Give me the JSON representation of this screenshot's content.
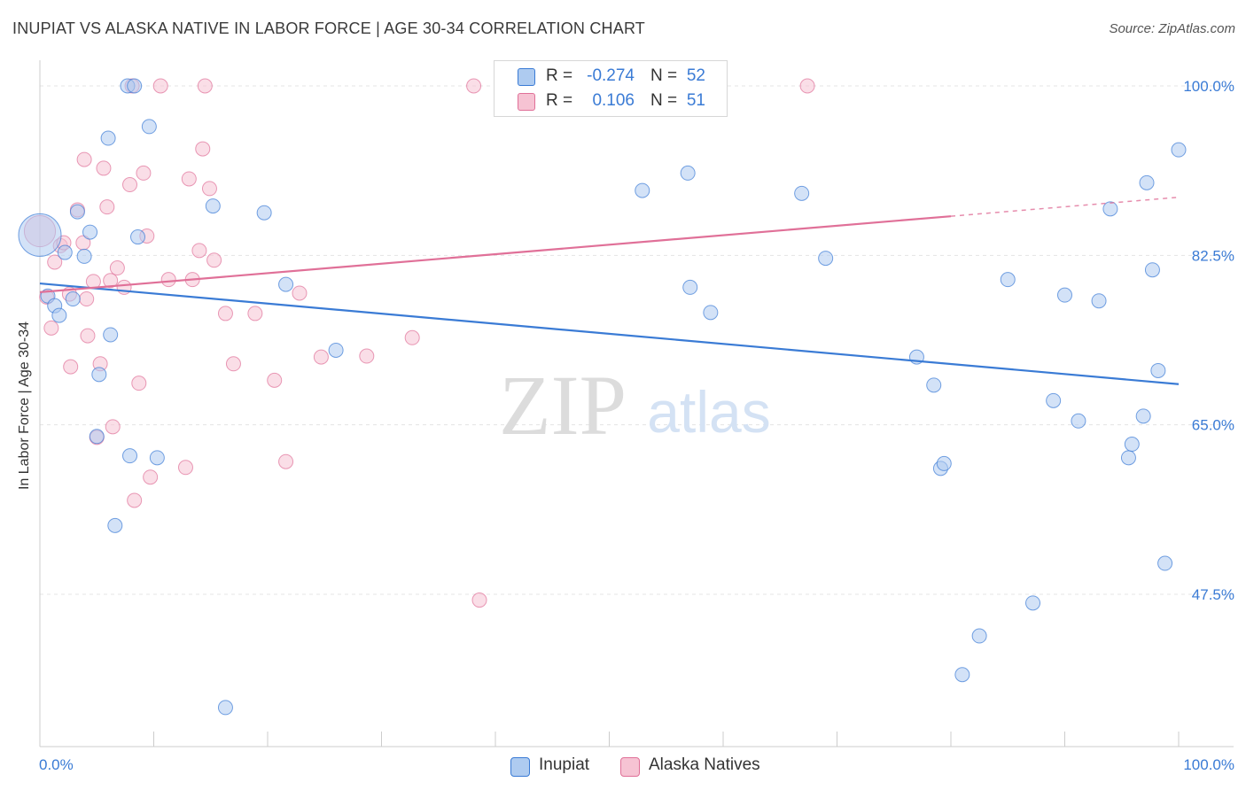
{
  "title": "INUPIAT VS ALASKA NATIVE IN LABOR FORCE | AGE 30-34 CORRELATION CHART",
  "source": "Source: ZipAtlas.com",
  "watermark": {
    "zip": "ZIP",
    "atlas": "atlas"
  },
  "colors": {
    "blue": "#3a7bd5",
    "pink": "#e07098",
    "blueFill": "#aecbf0",
    "pinkFill": "#f6c3d3",
    "grid": "#e4e4e4"
  },
  "legend_top": {
    "series": [
      {
        "r_label": "R =",
        "r_value": "-0.274",
        "n_label": "N =",
        "n_value": "52"
      },
      {
        "r_label": "R =",
        "r_value": "0.106",
        "n_label": "N =",
        "n_value": "51"
      }
    ]
  },
  "legend_bottom": [
    "Inupiat",
    "Alaska Natives"
  ],
  "chart_data": {
    "type": "scatter",
    "title": "INUPIAT VS ALASKA NATIVE IN LABOR FORCE | AGE 30-34 CORRELATION CHART",
    "xlabel": "",
    "ylabel": "In Labor Force | Age 30-34",
    "xlim": [
      0,
      100
    ],
    "ylim": [
      34,
      102
    ],
    "x_tick_labels": [
      "0.0%",
      "100.0%"
    ],
    "y_ticks": [
      100.0,
      82.5,
      65.0,
      47.5
    ],
    "y_tick_labels": [
      "100.0%",
      "82.5%",
      "65.0%",
      "47.5%"
    ],
    "series": [
      {
        "name": "Inupiat",
        "R": -0.274,
        "N": 52,
        "trend": {
          "x0": 0,
          "y0": 79.6,
          "x1": 100,
          "y1": 69.2,
          "solid_until": 100
        },
        "points": [
          [
            0.0,
            84.6,
            3.0
          ],
          [
            0.7,
            78.3,
            1
          ],
          [
            1.3,
            77.3,
            1
          ],
          [
            1.7,
            76.3,
            1
          ],
          [
            2.2,
            82.8,
            1
          ],
          [
            2.9,
            78.0,
            1
          ],
          [
            3.3,
            87.0,
            1
          ],
          [
            3.9,
            82.4,
            1
          ],
          [
            4.4,
            84.9,
            1
          ],
          [
            5.0,
            63.8,
            1
          ],
          [
            5.2,
            70.2,
            1
          ],
          [
            6.0,
            94.6,
            1
          ],
          [
            6.2,
            74.3,
            1
          ],
          [
            6.6,
            54.6,
            1
          ],
          [
            7.7,
            100.0,
            1
          ],
          [
            7.9,
            61.8,
            1
          ],
          [
            8.3,
            100.0,
            1
          ],
          [
            8.6,
            84.4,
            1
          ],
          [
            9.6,
            95.8,
            1
          ],
          [
            10.3,
            61.6,
            1
          ],
          [
            15.2,
            87.6,
            1
          ],
          [
            16.3,
            35.8,
            1
          ],
          [
            19.7,
            86.9,
            1
          ],
          [
            21.6,
            79.5,
            1
          ],
          [
            26.0,
            72.7,
            1
          ],
          [
            52.9,
            89.2,
            1
          ],
          [
            56.9,
            91.0,
            1
          ],
          [
            57.1,
            79.2,
            1
          ],
          [
            58.9,
            76.6,
            1
          ],
          [
            66.9,
            88.9,
            1
          ],
          [
            69.0,
            82.2,
            1
          ],
          [
            77.0,
            72.0,
            1
          ],
          [
            78.5,
            69.1,
            1
          ],
          [
            79.1,
            60.5,
            1
          ],
          [
            79.4,
            61.0,
            1
          ],
          [
            81.0,
            39.2,
            1
          ],
          [
            82.5,
            43.2,
            1
          ],
          [
            85.0,
            80.0,
            1
          ],
          [
            87.2,
            46.6,
            1
          ],
          [
            89.0,
            67.5,
            1
          ],
          [
            90.0,
            78.4,
            1
          ],
          [
            91.2,
            65.4,
            1
          ],
          [
            93.0,
            77.8,
            1
          ],
          [
            94.0,
            87.3,
            1
          ],
          [
            95.6,
            61.6,
            1
          ],
          [
            95.9,
            63.0,
            1
          ],
          [
            96.9,
            65.9,
            1
          ],
          [
            97.2,
            90.0,
            1
          ],
          [
            97.7,
            81.0,
            1
          ],
          [
            98.2,
            70.6,
            1
          ],
          [
            98.8,
            50.7,
            1
          ],
          [
            100.0,
            93.4,
            1
          ]
        ]
      },
      {
        "name": "Alaska Natives",
        "R": 0.106,
        "N": 51,
        "trend": {
          "x0": 0,
          "y0": 78.7,
          "x1": 100,
          "y1": 88.5,
          "solid_until": 80
        },
        "points": [
          [
            0.0,
            85.0,
            2.2
          ],
          [
            0.6,
            78.2,
            1
          ],
          [
            1.0,
            75.0,
            1
          ],
          [
            1.3,
            81.8,
            1
          ],
          [
            1.8,
            83.5,
            1
          ],
          [
            2.6,
            78.5,
            1
          ],
          [
            2.7,
            71.0,
            1
          ],
          [
            3.3,
            87.2,
            1
          ],
          [
            3.8,
            83.8,
            1
          ],
          [
            3.9,
            92.4,
            1
          ],
          [
            4.2,
            74.2,
            1
          ],
          [
            4.7,
            79.8,
            1
          ],
          [
            5.0,
            63.7,
            1
          ],
          [
            5.3,
            71.3,
            1
          ],
          [
            5.6,
            91.5,
            1
          ],
          [
            5.9,
            87.5,
            1
          ],
          [
            6.4,
            64.8,
            1
          ],
          [
            6.8,
            81.2,
            1
          ],
          [
            7.4,
            79.2,
            1
          ],
          [
            7.9,
            89.8,
            1
          ],
          [
            8.3,
            57.2,
            1
          ],
          [
            8.7,
            69.3,
            1
          ],
          [
            9.1,
            91.0,
            1
          ],
          [
            9.4,
            84.5,
            1
          ],
          [
            9.7,
            59.6,
            1
          ],
          [
            11.3,
            80.0,
            1
          ],
          [
            12.8,
            60.6,
            1
          ],
          [
            13.1,
            90.4,
            1
          ],
          [
            13.4,
            80.0,
            1
          ],
          [
            14.0,
            83.0,
            1
          ],
          [
            14.3,
            93.5,
            1
          ],
          [
            14.5,
            100.0,
            1
          ],
          [
            14.9,
            89.4,
            1
          ],
          [
            15.3,
            82.0,
            1
          ],
          [
            16.3,
            76.5,
            1
          ],
          [
            17.0,
            71.3,
            1
          ],
          [
            18.9,
            76.5,
            1
          ],
          [
            20.6,
            69.6,
            1
          ],
          [
            21.6,
            61.2,
            1
          ],
          [
            22.8,
            78.6,
            1
          ],
          [
            24.7,
            72.0,
            1
          ],
          [
            28.7,
            72.1,
            1
          ],
          [
            32.7,
            74.0,
            1
          ],
          [
            38.1,
            100.0,
            1
          ],
          [
            38.6,
            46.9,
            1
          ],
          [
            67.4,
            100.0,
            1
          ],
          [
            10.6,
            100.0,
            1
          ],
          [
            8.1,
            100.0,
            1
          ],
          [
            4.1,
            78.0,
            1
          ],
          [
            2.1,
            83.8,
            1
          ],
          [
            6.2,
            79.9,
            1
          ]
        ]
      }
    ]
  }
}
